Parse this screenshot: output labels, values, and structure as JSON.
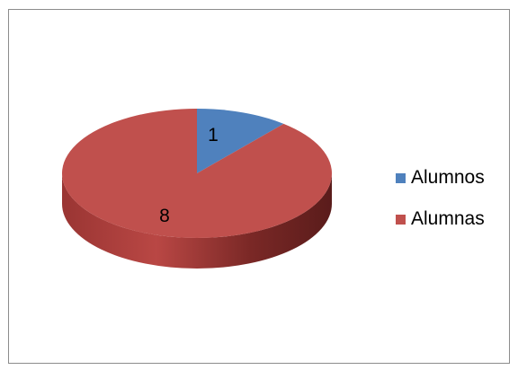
{
  "chart_data": {
    "type": "pie",
    "style": "3d",
    "title": "",
    "categories": [
      "Alumnos",
      "Alumnas"
    ],
    "values": [
      1,
      8
    ],
    "colors": [
      "#4f81bd",
      "#c0504d"
    ],
    "data_labels": [
      "1",
      "8"
    ],
    "legend_position": "right"
  }
}
